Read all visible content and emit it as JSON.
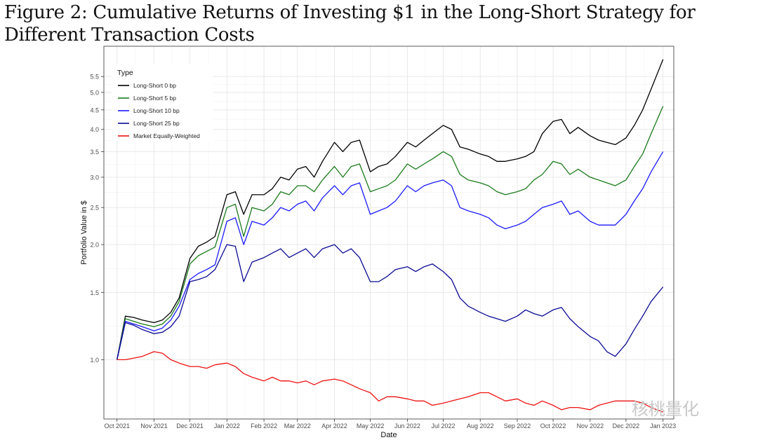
{
  "figure": {
    "caption": "Figure 2: Cumulative Returns of Investing $1 in the Long-Short Strategy for Different Transaction Costs"
  },
  "watermark": "核桃量化",
  "colors": {
    "Long-Short 0 bp": "#000000",
    "Long-Short 5 bp": "#1a7a1a",
    "Long-Short 10 bp": "#1a1aff",
    "Long-Short 25 bp": "#0a0a96",
    "Market Equally-Weighted": "#ee1111"
  },
  "chart_data": {
    "type": "line",
    "xlabel": "Date",
    "ylabel": "Portfolio Value in $",
    "ytick_labels": [
      "1.0",
      "1.5",
      "2.0",
      "2.5",
      "3.0",
      "3.5",
      "4.0",
      "4.5",
      "5.0",
      "5.5"
    ],
    "yticks": [
      1.0,
      1.5,
      2.0,
      2.5,
      3.0,
      3.5,
      4.0,
      4.5,
      5.0,
      5.5
    ],
    "y_scale": "log",
    "ylim": [
      0.7,
      6.6
    ],
    "xtick_labels": [
      "Oct 2021",
      "Nov 2021",
      "Dec 2021",
      "Jan 2022",
      "Feb 2022",
      "Mar 2022",
      "Apr 2022",
      "May 2022",
      "Jun 2022",
      "Jul 2022",
      "Aug 2022",
      "Sep 2022",
      "Oct 2022",
      "Nov 2022",
      "Dec 2022",
      "Jan 2023"
    ],
    "xlim": [
      "2021-09-20",
      "2023-01-10"
    ],
    "grid": true,
    "legend": {
      "title": "Type",
      "placement": "top-left"
    },
    "x": [
      "2021-10-01",
      "2021-10-08",
      "2021-10-15",
      "2021-10-22",
      "2021-11-01",
      "2021-11-08",
      "2021-11-15",
      "2021-11-22",
      "2021-12-01",
      "2021-12-08",
      "2021-12-15",
      "2021-12-22",
      "2022-01-01",
      "2022-01-08",
      "2022-01-15",
      "2022-01-22",
      "2022-02-01",
      "2022-02-08",
      "2022-02-15",
      "2022-02-22",
      "2022-03-01",
      "2022-03-08",
      "2022-03-15",
      "2022-03-22",
      "2022-04-01",
      "2022-04-08",
      "2022-04-15",
      "2022-04-22",
      "2022-05-01",
      "2022-05-08",
      "2022-05-15",
      "2022-05-22",
      "2022-06-01",
      "2022-06-08",
      "2022-06-15",
      "2022-06-22",
      "2022-07-01",
      "2022-07-08",
      "2022-07-15",
      "2022-07-22",
      "2022-08-01",
      "2022-08-08",
      "2022-08-15",
      "2022-08-22",
      "2022-09-01",
      "2022-09-08",
      "2022-09-15",
      "2022-09-22",
      "2022-10-01",
      "2022-10-08",
      "2022-10-15",
      "2022-10-22",
      "2022-11-01",
      "2022-11-08",
      "2022-11-15",
      "2022-11-22",
      "2022-12-01",
      "2022-12-08",
      "2022-12-15",
      "2022-12-22",
      "2023-01-01"
    ],
    "series": [
      {
        "name": "Long-Short 0 bp",
        "values": [
          1.0,
          1.3,
          1.29,
          1.27,
          1.25,
          1.27,
          1.33,
          1.45,
          1.84,
          1.98,
          2.03,
          2.1,
          2.7,
          2.75,
          2.4,
          2.7,
          2.7,
          2.8,
          3.0,
          2.95,
          3.15,
          3.2,
          3.0,
          3.3,
          3.7,
          3.5,
          3.7,
          3.75,
          3.1,
          3.2,
          3.25,
          3.4,
          3.7,
          3.6,
          3.75,
          3.9,
          4.1,
          4.0,
          3.6,
          3.55,
          3.45,
          3.4,
          3.3,
          3.3,
          3.35,
          3.4,
          3.5,
          3.9,
          4.2,
          4.25,
          3.9,
          4.05,
          3.85,
          3.75,
          3.7,
          3.65,
          3.8,
          4.1,
          4.5,
          5.1,
          6.1
        ]
      },
      {
        "name": "Long-Short 5 bp",
        "values": [
          1.0,
          1.28,
          1.26,
          1.24,
          1.22,
          1.24,
          1.3,
          1.42,
          1.78,
          1.87,
          1.92,
          1.97,
          2.5,
          2.55,
          2.1,
          2.5,
          2.45,
          2.55,
          2.75,
          2.7,
          2.85,
          2.85,
          2.75,
          2.95,
          3.2,
          3.0,
          3.2,
          3.25,
          2.75,
          2.8,
          2.85,
          2.95,
          3.25,
          3.15,
          3.25,
          3.35,
          3.5,
          3.4,
          3.05,
          2.95,
          2.9,
          2.85,
          2.75,
          2.7,
          2.75,
          2.8,
          2.95,
          3.05,
          3.3,
          3.25,
          3.05,
          3.15,
          3.0,
          2.95,
          2.9,
          2.85,
          2.95,
          3.2,
          3.45,
          3.9,
          4.6
        ]
      },
      {
        "name": "Long-Short 10 bp",
        "values": [
          1.0,
          1.26,
          1.24,
          1.22,
          1.19,
          1.21,
          1.27,
          1.38,
          1.62,
          1.68,
          1.72,
          1.77,
          2.3,
          2.35,
          2.0,
          2.3,
          2.25,
          2.35,
          2.5,
          2.45,
          2.55,
          2.6,
          2.45,
          2.65,
          2.85,
          2.7,
          2.85,
          2.9,
          2.4,
          2.45,
          2.5,
          2.6,
          2.85,
          2.75,
          2.85,
          2.9,
          2.95,
          2.85,
          2.5,
          2.45,
          2.4,
          2.35,
          2.25,
          2.2,
          2.25,
          2.3,
          2.4,
          2.5,
          2.55,
          2.6,
          2.4,
          2.45,
          2.3,
          2.25,
          2.25,
          2.25,
          2.4,
          2.6,
          2.8,
          3.1,
          3.5
        ]
      },
      {
        "name": "Long-Short 25 bp",
        "values": [
          1.0,
          1.25,
          1.23,
          1.2,
          1.17,
          1.18,
          1.22,
          1.3,
          1.6,
          1.62,
          1.65,
          1.72,
          2.0,
          1.98,
          1.6,
          1.8,
          1.85,
          1.9,
          1.95,
          1.85,
          1.9,
          1.95,
          1.85,
          1.95,
          2.0,
          1.9,
          1.95,
          1.85,
          1.6,
          1.6,
          1.65,
          1.72,
          1.75,
          1.7,
          1.75,
          1.78,
          1.7,
          1.62,
          1.45,
          1.38,
          1.33,
          1.3,
          1.28,
          1.26,
          1.3,
          1.35,
          1.32,
          1.3,
          1.35,
          1.37,
          1.28,
          1.22,
          1.15,
          1.12,
          1.05,
          1.02,
          1.1,
          1.2,
          1.3,
          1.42,
          1.55
        ]
      },
      {
        "name": "Market Equally-Weighted",
        "values": [
          1.0,
          1.0,
          1.01,
          1.02,
          1.05,
          1.04,
          1.0,
          0.98,
          0.96,
          0.96,
          0.95,
          0.97,
          0.98,
          0.96,
          0.92,
          0.9,
          0.88,
          0.9,
          0.88,
          0.88,
          0.87,
          0.88,
          0.86,
          0.88,
          0.89,
          0.88,
          0.86,
          0.84,
          0.82,
          0.78,
          0.8,
          0.8,
          0.79,
          0.78,
          0.78,
          0.76,
          0.77,
          0.78,
          0.79,
          0.8,
          0.82,
          0.82,
          0.8,
          0.78,
          0.79,
          0.77,
          0.76,
          0.78,
          0.76,
          0.74,
          0.75,
          0.75,
          0.74,
          0.76,
          0.77,
          0.78,
          0.78,
          0.78,
          0.77,
          0.75,
          0.73
        ]
      }
    ]
  }
}
